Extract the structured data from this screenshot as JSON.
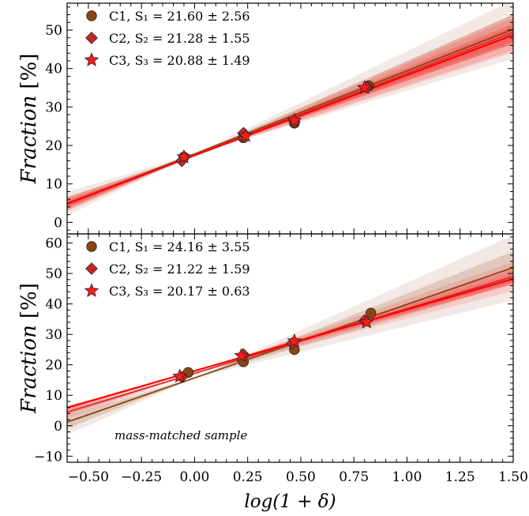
{
  "chart_data": [
    {
      "type": "scatter",
      "panel": "top",
      "x_range": [
        -0.6,
        1.5
      ],
      "ylim": [
        -3,
        57
      ],
      "yticks": [
        0,
        10,
        20,
        30,
        40,
        50
      ],
      "xticks": [
        -0.5,
        -0.25,
        0.0,
        0.25,
        0.5,
        0.75,
        1.0,
        1.25,
        1.5
      ],
      "ylabel": "Fraction [%]",
      "ylabel_word": "Fraction",
      "ylabel_unit": "[%]",
      "legend_position": "top-left",
      "annotation": "",
      "series": [
        {
          "name": "C1",
          "legend_label": "C1,  S₁ = 21.60 ± 2.56",
          "marker": "circle",
          "color": "#8b4513",
          "x": [
            -0.05,
            0.23,
            0.47,
            0.82
          ],
          "y": [
            17.0,
            22.0,
            25.8,
            35.5
          ],
          "fit": {
            "slope": 21.6,
            "intercept": 17.8,
            "err": 2.56
          }
        },
        {
          "name": "C2",
          "legend_label": "C2,  S₂ = 21.28 ± 1.55",
          "marker": "diamond",
          "color": "#c62828",
          "x": [
            -0.06,
            0.23,
            0.47,
            0.81
          ],
          "y": [
            16.0,
            23.2,
            26.2,
            35.2
          ],
          "fit": {
            "slope": 21.28,
            "intercept": 17.5,
            "err": 1.55
          }
        },
        {
          "name": "C3",
          "legend_label": "C3,  S₃ = 20.88 ± 1.49",
          "marker": "star",
          "color": "#ff1a1a",
          "x": [
            -0.05,
            0.24,
            0.47,
            0.8
          ],
          "y": [
            17.0,
            22.5,
            26.5,
            35.0
          ],
          "fit": {
            "slope": 20.88,
            "intercept": 17.4,
            "err": 1.49
          }
        }
      ]
    },
    {
      "type": "scatter",
      "panel": "bottom",
      "x_range": [
        -0.6,
        1.5
      ],
      "ylim": [
        -12,
        63
      ],
      "yticks": [
        -10,
        0,
        10,
        20,
        30,
        40,
        50,
        60
      ],
      "xticks": [
        -0.5,
        -0.25,
        0.0,
        0.25,
        0.5,
        0.75,
        1.0,
        1.25,
        1.5
      ],
      "xlabel": "log(1 + δ)",
      "ylabel": "Fraction [%]",
      "ylabel_word": "Fraction",
      "ylabel_unit": "[%]",
      "legend_position": "top-left",
      "annotation": "mass-matched sample",
      "series": [
        {
          "name": "C1",
          "legend_label": "C1,  S₁ = 24.16 ± 3.55",
          "marker": "circle",
          "color": "#8b4513",
          "x": [
            -0.03,
            0.23,
            0.47,
            0.83
          ],
          "y": [
            17.5,
            21.0,
            25.0,
            37.0
          ],
          "fit": {
            "slope": 24.16,
            "intercept": 15.7,
            "err": 3.55
          }
        },
        {
          "name": "C2",
          "legend_label": "C2,  S₂ = 21.22 ± 1.59",
          "marker": "diamond",
          "color": "#c62828",
          "x": [
            -0.06,
            0.23,
            0.46,
            0.8
          ],
          "y": [
            16.0,
            23.4,
            27.0,
            34.5
          ],
          "fit": {
            "slope": 21.22,
            "intercept": 17.2,
            "err": 1.59
          }
        },
        {
          "name": "C3",
          "legend_label": "C3,  S₃ = 20.17 ± 0.63",
          "marker": "star",
          "color": "#ff1a1a",
          "x": [
            -0.07,
            0.22,
            0.47,
            0.81
          ],
          "y": [
            16.2,
            23.0,
            27.8,
            34.0
          ],
          "fit": {
            "slope": 20.17,
            "intercept": 18.0,
            "err": 0.63
          }
        }
      ]
    }
  ]
}
